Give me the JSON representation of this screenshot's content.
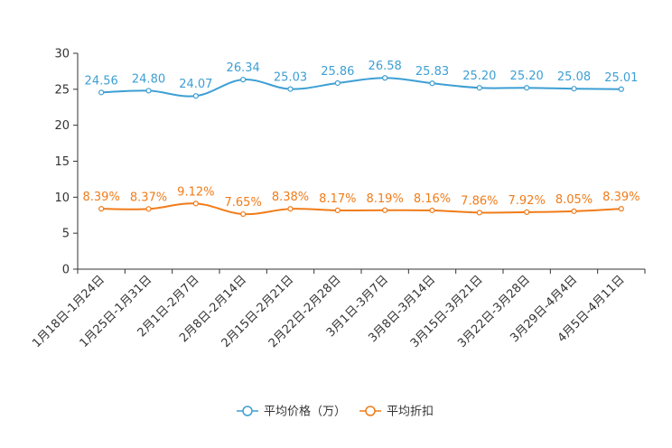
{
  "chart_data": {
    "type": "line",
    "title": "",
    "xlabel": "",
    "ylabel": "",
    "ylim": [
      0,
      30
    ],
    "yticks": [
      0,
      5,
      10,
      15,
      20,
      25,
      30
    ],
    "categories": [
      "1月18日-1月24日",
      "1月25日-1月31日",
      "2月1日-2月7日",
      "2月8日-2月14日",
      "2月15日-2月21日",
      "2月22日-2月28日",
      "3月1日-3月7日",
      "3月8日-3月14日",
      "3月15日-3月21日",
      "3月22日-3月28日",
      "3月29日-4月4日",
      "4月5日-4月11日"
    ],
    "series": [
      {
        "name": "平均价格（万）",
        "color": "#3d9fd4",
        "values": [
          24.56,
          24.8,
          24.07,
          26.34,
          25.03,
          25.86,
          26.58,
          25.83,
          25.2,
          25.2,
          25.08,
          25.01
        ],
        "labels": [
          "24.56",
          "24.80",
          "24.07",
          "26.34",
          "25.03",
          "25.86",
          "26.58",
          "25.83",
          "25.20",
          "25.20",
          "25.08",
          "25.01"
        ]
      },
      {
        "name": "平均折扣",
        "color": "#f07c1a",
        "values": [
          8.39,
          8.37,
          9.12,
          7.65,
          8.38,
          8.17,
          8.19,
          8.16,
          7.86,
          7.92,
          8.05,
          8.39
        ],
        "labels": [
          "8.39%",
          "8.37%",
          "9.12%",
          "7.65%",
          "8.38%",
          "8.17%",
          "8.19%",
          "8.16%",
          "7.86%",
          "7.92%",
          "8.05%",
          "8.39%"
        ]
      }
    ],
    "legend_position": "bottom-center",
    "grid": false
  }
}
